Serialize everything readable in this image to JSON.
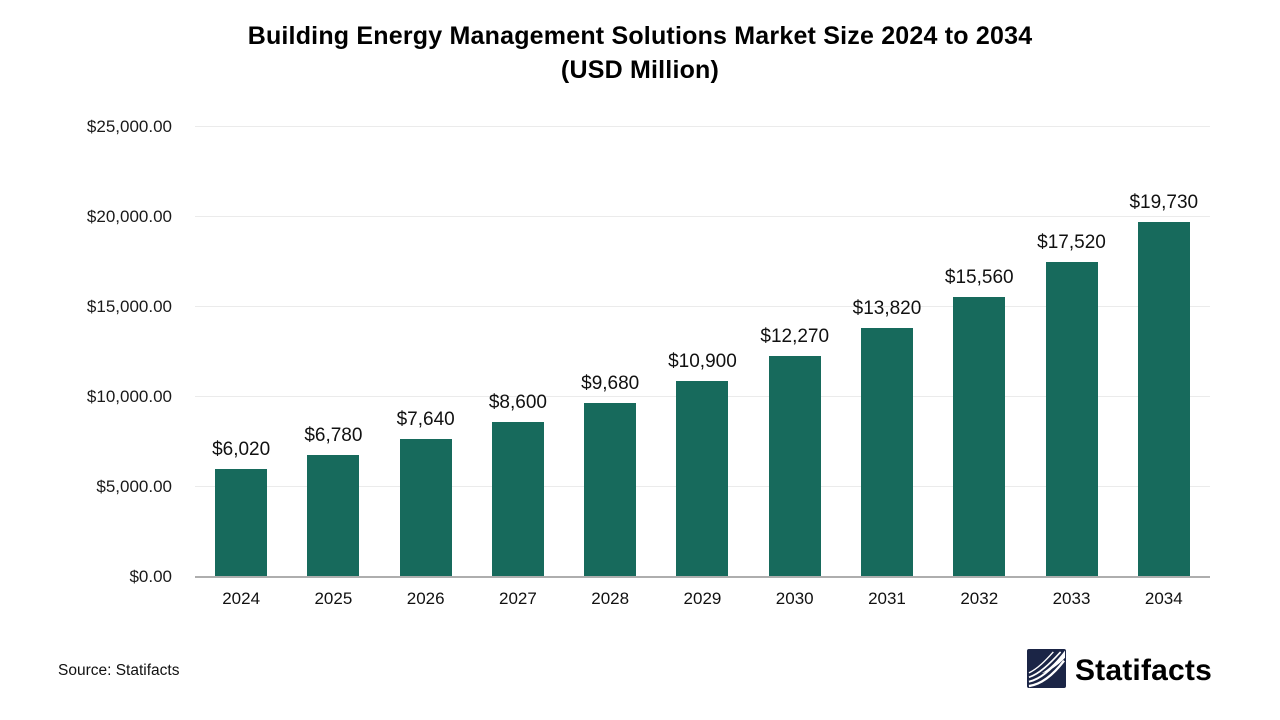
{
  "title": "Building Energy Management Solutions Market Size 2024 to 2034",
  "subtitle": "(USD Million)",
  "source": "Source: Statifacts",
  "brand": {
    "name": "Statifacts",
    "logo_icon": "wave-pages-icon"
  },
  "colors": {
    "bar": "#176a5c",
    "brand_navy": "#1b2546",
    "gridline": "#ebebeb",
    "axis_line": "#aeaeae",
    "background": "#ffffff",
    "text": "#111111"
  },
  "chart_data": {
    "type": "bar",
    "title": "Building Energy Management Solutions Market Size 2024 to 2034 (USD Million)",
    "categories": [
      "2024",
      "2025",
      "2026",
      "2027",
      "2028",
      "2029",
      "2030",
      "2031",
      "2032",
      "2033",
      "2034"
    ],
    "values": [
      6020,
      6780,
      7640,
      8600,
      9680,
      10900,
      12270,
      13820,
      15560,
      17520,
      19730
    ],
    "value_labels": [
      "$6,020",
      "$6,780",
      "$7,640",
      "$8,600",
      "$9,680",
      "$10,900",
      "$12,270",
      "$13,820",
      "$15,560",
      "$17,520",
      "$19,730"
    ],
    "xlabel": "",
    "ylabel": "",
    "ylim": [
      0,
      25000
    ],
    "yticks": [
      0,
      5000,
      10000,
      15000,
      20000,
      25000
    ],
    "ytick_labels": [
      "$0.00",
      "$5,000.00",
      "$10,000.00",
      "$15,000.00",
      "$20,000.00",
      "$25,000.00"
    ],
    "grid": true,
    "legend": false,
    "bar_color": "#176a5c"
  }
}
